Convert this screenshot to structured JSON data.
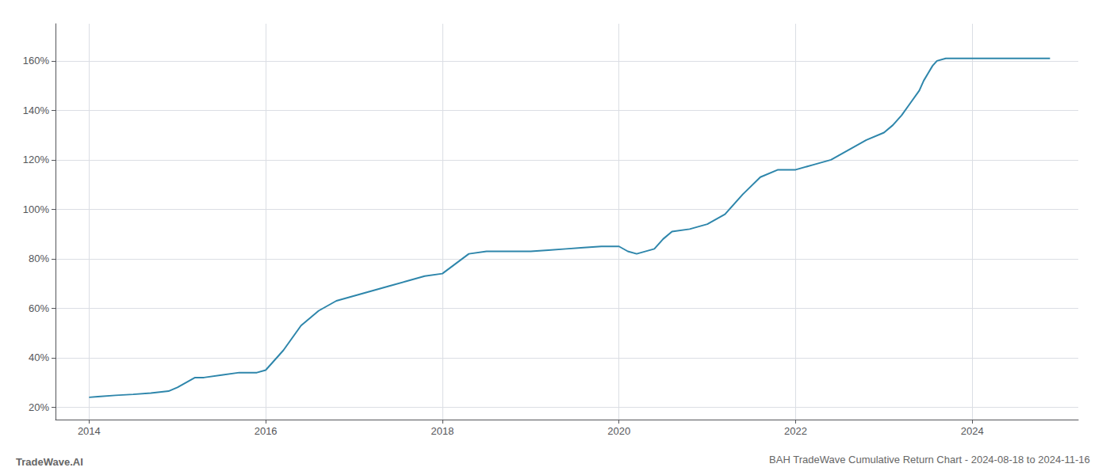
{
  "chart_data": {
    "type": "line",
    "title": "BAH TradeWave Cumulative Return Chart - 2024-08-18 to 2024-11-16",
    "annotations": [
      "TradeWave.AI"
    ],
    "color": "#2e86ab",
    "grid": true,
    "xlim": [
      2013.62,
      2025.2
    ],
    "ylim": [
      15,
      175
    ],
    "xticks": [
      2014,
      2016,
      2018,
      2020,
      2022,
      2024
    ],
    "yticks": [
      {
        "value": 20,
        "label": "20%"
      },
      {
        "value": 40,
        "label": "40%"
      },
      {
        "value": 60,
        "label": "60%"
      },
      {
        "value": 80,
        "label": "80%"
      },
      {
        "value": 100,
        "label": "100%"
      },
      {
        "value": 120,
        "label": "120%"
      },
      {
        "value": 140,
        "label": "140%"
      },
      {
        "value": 160,
        "label": "160%"
      }
    ],
    "x": [
      2014.0,
      2014.1,
      2014.3,
      2014.5,
      2014.7,
      2014.9,
      2015.0,
      2015.1,
      2015.2,
      2015.3,
      2015.5,
      2015.7,
      2015.9,
      2016.0,
      2016.2,
      2016.4,
      2016.6,
      2016.8,
      2017.0,
      2017.2,
      2017.4,
      2017.6,
      2017.8,
      2018.0,
      2018.15,
      2018.3,
      2018.5,
      2018.7,
      2018.9,
      2019.0,
      2019.2,
      2019.4,
      2019.6,
      2019.8,
      2020.0,
      2020.1,
      2020.2,
      2020.4,
      2020.5,
      2020.6,
      2020.8,
      2021.0,
      2021.2,
      2021.4,
      2021.6,
      2021.8,
      2022.0,
      2022.2,
      2022.4,
      2022.5,
      2022.6,
      2022.8,
      2023.0,
      2023.1,
      2023.2,
      2023.3,
      2023.4,
      2023.45,
      2023.5,
      2023.55,
      2023.6,
      2023.7,
      2023.8,
      2024.0,
      2024.2,
      2024.4,
      2024.6,
      2024.88
    ],
    "values": [
      24,
      24.3,
      24.8,
      25.2,
      25.7,
      26.5,
      28,
      30,
      32,
      32,
      33,
      34,
      34,
      35,
      43,
      53,
      59,
      63,
      65,
      67,
      69,
      71,
      73,
      74,
      78,
      82,
      83,
      83,
      83,
      83,
      83.5,
      84,
      84.5,
      85,
      85,
      83,
      82,
      84,
      88,
      91,
      92,
      94,
      98,
      106,
      113,
      116,
      116,
      118,
      120,
      122,
      124,
      128,
      131,
      134,
      138,
      143,
      148,
      152,
      155,
      158,
      160,
      161,
      161,
      161,
      161,
      161,
      161,
      161
    ]
  }
}
